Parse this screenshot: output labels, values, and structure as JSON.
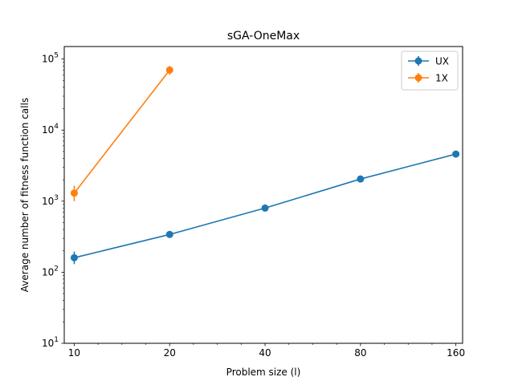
{
  "chart_data": {
    "type": "line",
    "title": "sGA-OneMax",
    "xlabel": "Problem size (l)",
    "ylabel": "Average number of fitness function calls",
    "xscale": "log2",
    "yscale": "log10",
    "xlim": [
      9.3,
      168
    ],
    "ylim": [
      10,
      150000
    ],
    "x_ticks": [
      10,
      20,
      40,
      80,
      160
    ],
    "x_tick_labels": [
      "10",
      "20",
      "40",
      "80",
      "160"
    ],
    "y_ticks": [
      10,
      100,
      1000,
      10000,
      100000
    ],
    "y_tick_labels": [
      {
        "base": "10",
        "exp": "1"
      },
      {
        "base": "10",
        "exp": "2"
      },
      {
        "base": "10",
        "exp": "3"
      },
      {
        "base": "10",
        "exp": "4"
      },
      {
        "base": "10",
        "exp": "5"
      }
    ],
    "grid": false,
    "legend_position": "top-right",
    "series": [
      {
        "name": "UX",
        "color": "#1f77b4",
        "x": [
          10,
          20,
          40,
          80,
          160
        ],
        "y": [
          160,
          340,
          800,
          2050,
          4600
        ],
        "yerr_low": [
          130,
          315,
          770,
          1900,
          4450
        ],
        "yerr_high": [
          195,
          365,
          830,
          2200,
          4750
        ]
      },
      {
        "name": "1X",
        "color": "#ff7f0e",
        "x": [
          10,
          20
        ],
        "y": [
          1300,
          70000
        ],
        "yerr_low": [
          1000,
          60000
        ],
        "yerr_high": [
          1650,
          80000
        ]
      }
    ]
  }
}
